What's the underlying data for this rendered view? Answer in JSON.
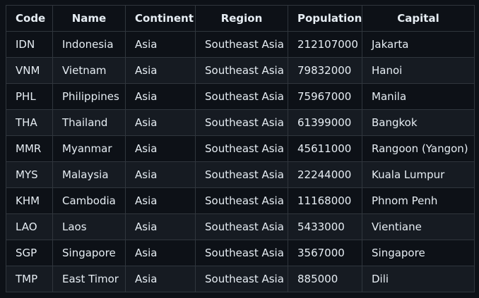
{
  "table": {
    "headers": [
      "Code",
      "Name",
      "Continent",
      "Region",
      "Population",
      "Capital"
    ],
    "rows": [
      [
        "IDN",
        "Indonesia",
        "Asia",
        "Southeast Asia",
        "212107000",
        "Jakarta"
      ],
      [
        "VNM",
        "Vietnam",
        "Asia",
        "Southeast Asia",
        "79832000",
        "Hanoi"
      ],
      [
        "PHL",
        "Philippines",
        "Asia",
        "Southeast Asia",
        "75967000",
        "Manila"
      ],
      [
        "THA",
        "Thailand",
        "Asia",
        "Southeast Asia",
        "61399000",
        "Bangkok"
      ],
      [
        "MMR",
        "Myanmar",
        "Asia",
        "Southeast Asia",
        "45611000",
        "Rangoon (Yangon)"
      ],
      [
        "MYS",
        "Malaysia",
        "Asia",
        "Southeast Asia",
        "22244000",
        "Kuala Lumpur"
      ],
      [
        "KHM",
        "Cambodia",
        "Asia",
        "Southeast Asia",
        "11168000",
        "Phnom Penh"
      ],
      [
        "LAO",
        "Laos",
        "Asia",
        "Southeast Asia",
        "5433000",
        "Vientiane"
      ],
      [
        "SGP",
        "Singapore",
        "Asia",
        "Southeast Asia",
        "3567000",
        "Singapore"
      ],
      [
        "TMP",
        "East Timor",
        "Asia",
        "Southeast Asia",
        "885000",
        "Dili"
      ]
    ]
  },
  "colors": {
    "background": "#0d1117",
    "row_alt": "#161b22",
    "border": "#30363d",
    "text": "#e6edf3"
  }
}
